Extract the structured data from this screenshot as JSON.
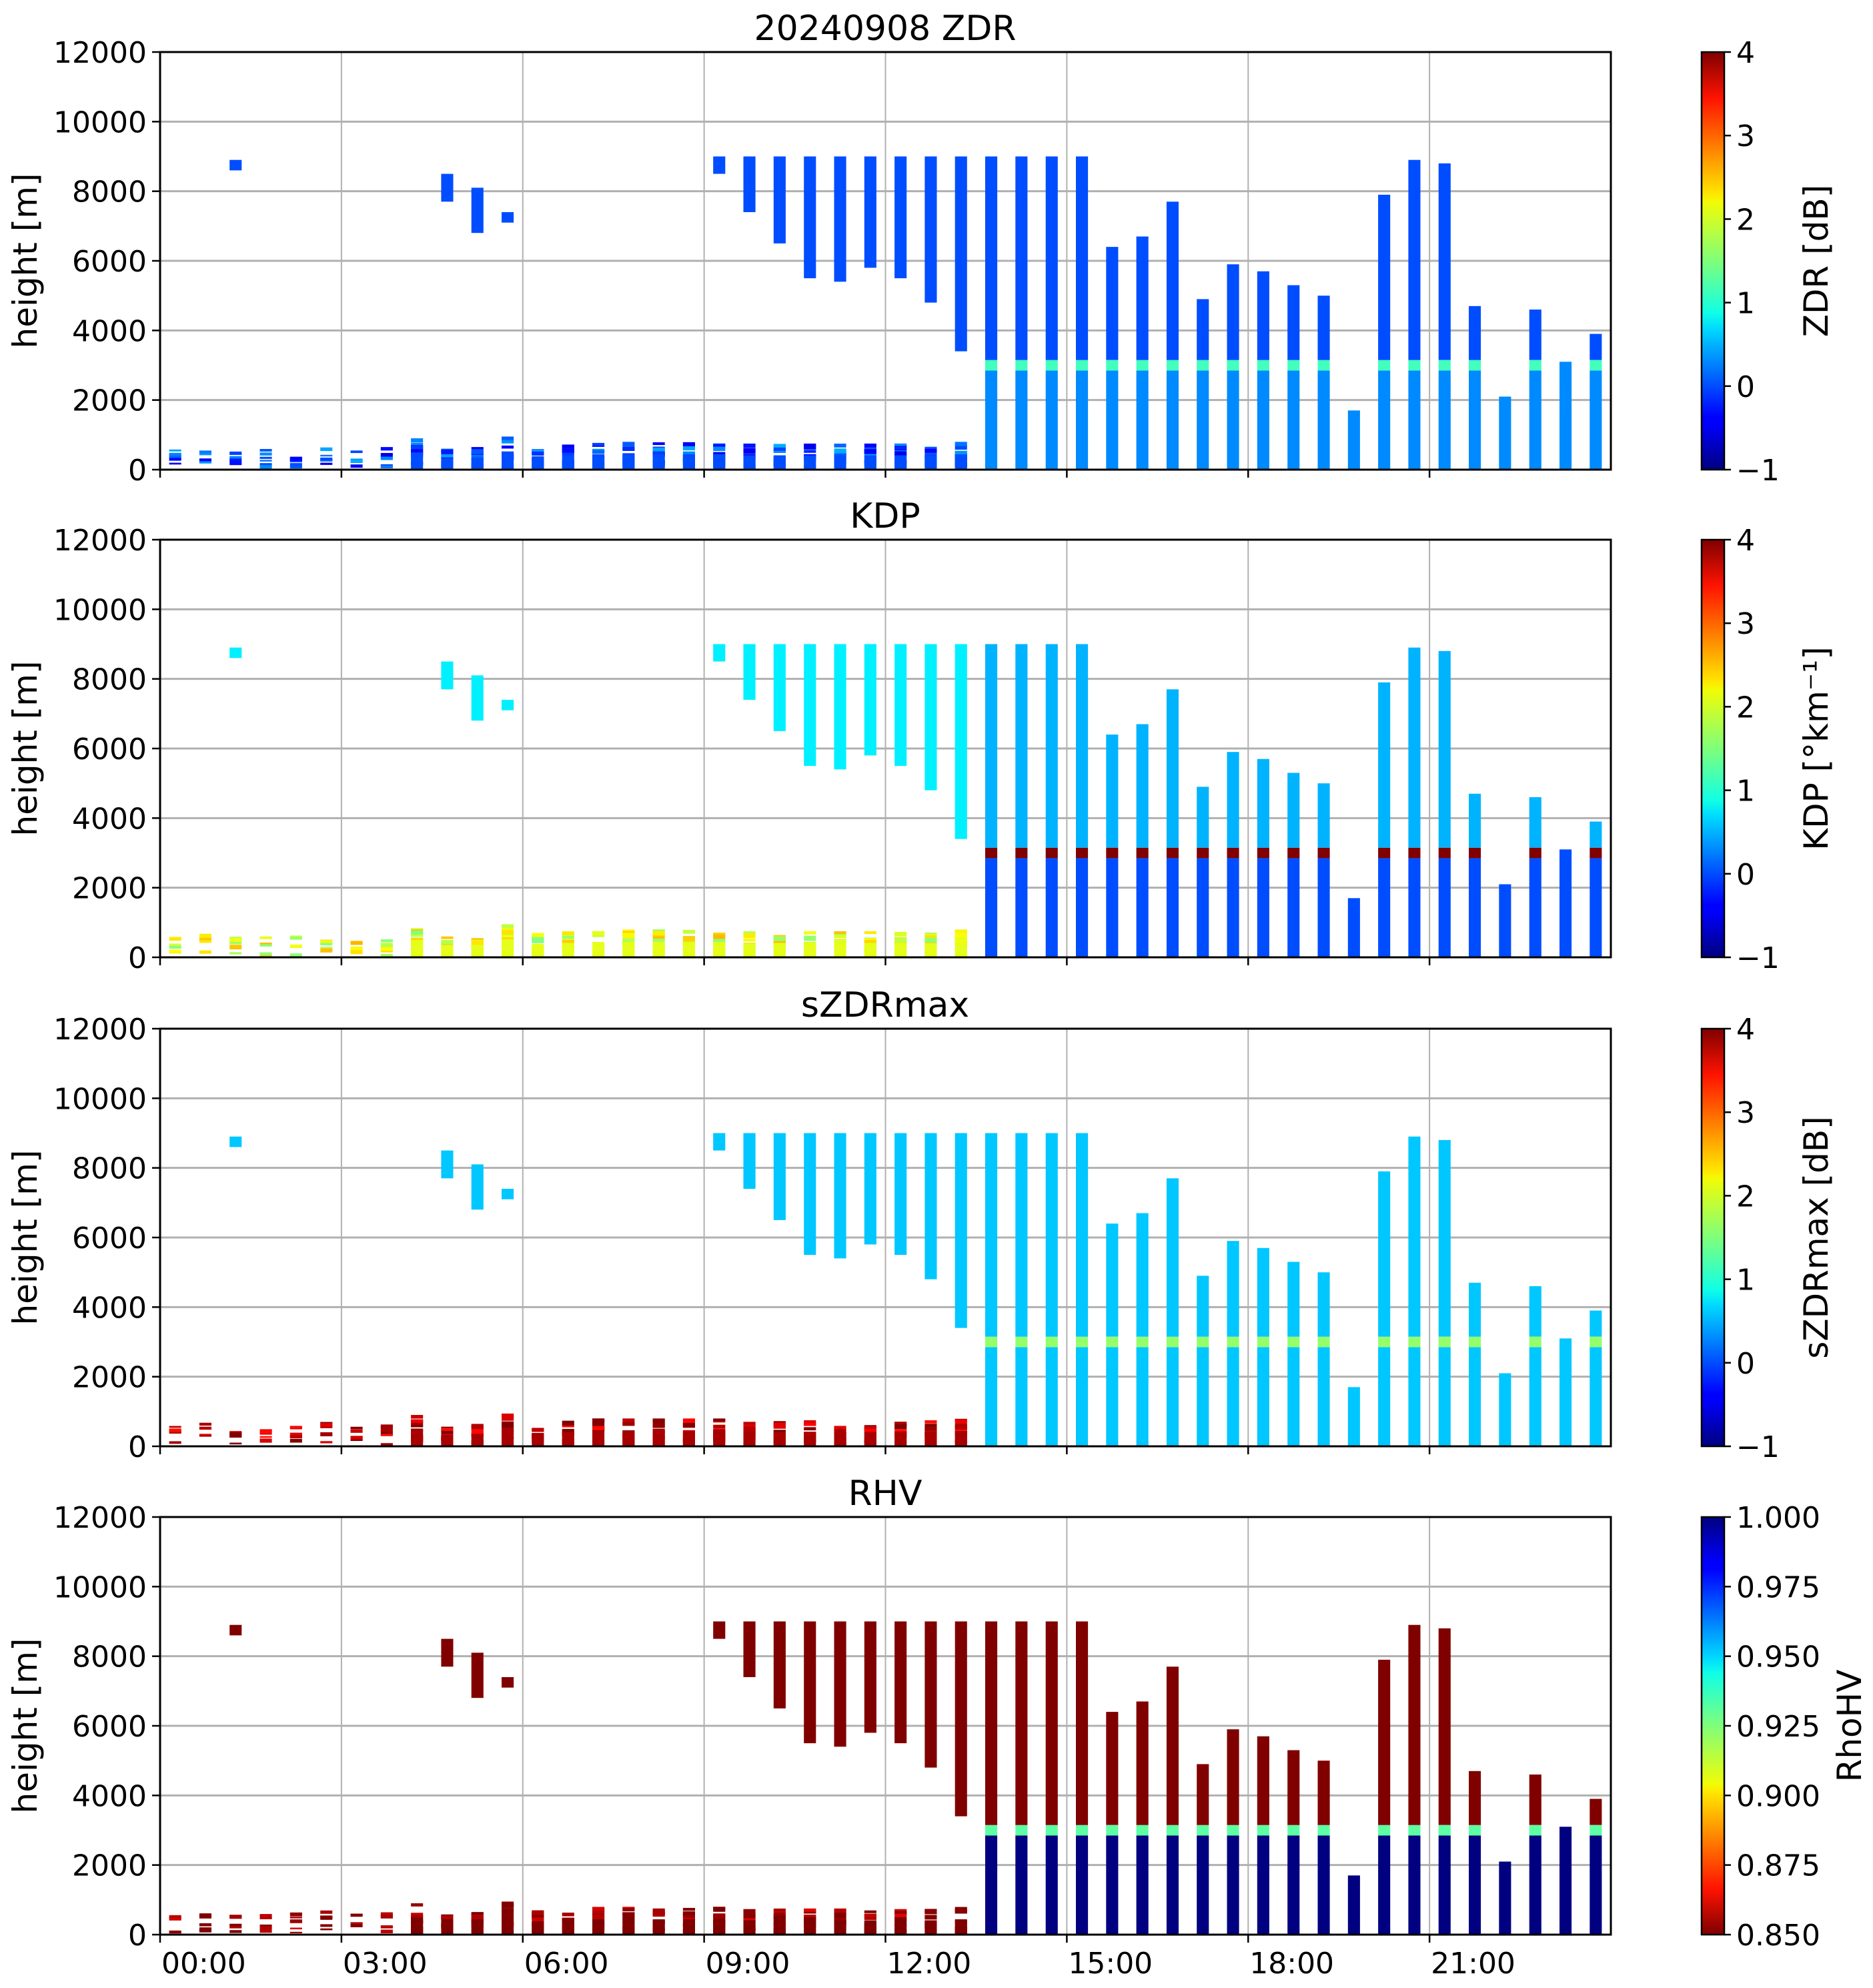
{
  "figure": {
    "panels": [
      {
        "id": "zdr",
        "title": "20240908 ZDR",
        "ylabel": "height [m]",
        "cbar_label": "ZDR [dB]",
        "cmap": "jet",
        "vmin": -1,
        "vmax": 4,
        "cbar_ticks": [
          "4",
          "3",
          "2",
          "1",
          "0",
          "−1"
        ],
        "cbar_tick_values": [
          4,
          3,
          2,
          1,
          0,
          -1
        ]
      },
      {
        "id": "kdp",
        "title": "KDP",
        "ylabel": "height [m]",
        "cbar_label": "KDP [°km⁻¹]",
        "cmap": "jet",
        "vmin": -1,
        "vmax": 4,
        "cbar_ticks": [
          "4",
          "3",
          "2",
          "1",
          "0",
          "−1"
        ],
        "cbar_tick_values": [
          4,
          3,
          2,
          1,
          0,
          -1
        ]
      },
      {
        "id": "szdrmax",
        "title": "sZDRmax",
        "ylabel": "height [m]",
        "cbar_label": "sZDRmax [dB]",
        "cmap": "jet",
        "vmin": -1,
        "vmax": 4,
        "cbar_ticks": [
          "4",
          "3",
          "2",
          "1",
          "0",
          "−1"
        ],
        "cbar_tick_values": [
          4,
          3,
          2,
          1,
          0,
          -1
        ]
      },
      {
        "id": "rhv",
        "title": "RHV",
        "ylabel": "height [m]",
        "cbar_label": "RhoHV",
        "cmap": "jet_r",
        "vmin": 0.85,
        "vmax": 1.0,
        "cbar_ticks": [
          "1.000",
          "0.975",
          "0.950",
          "0.925",
          "0.900",
          "0.875",
          "0.850"
        ],
        "cbar_tick_values": [
          1.0,
          0.975,
          0.95,
          0.925,
          0.9,
          0.875,
          0.85
        ]
      }
    ],
    "y_ticks": [
      "12000",
      "10000",
      "8000",
      "6000",
      "4000",
      "2000",
      "0"
    ],
    "y_tick_values": [
      12000,
      10000,
      8000,
      6000,
      4000,
      2000,
      0
    ],
    "x_ticks": [
      "00:00",
      "03:00",
      "06:00",
      "09:00",
      "12:00",
      "15:00",
      "18:00",
      "21:00"
    ],
    "x_tick_values": [
      0,
      3,
      6,
      9,
      12,
      15,
      18,
      21
    ]
  },
  "chart_data": {
    "type": "heatmap",
    "title": "20240908 ZDR",
    "subplots": [
      "ZDR",
      "KDP",
      "sZDRmax",
      "RHV"
    ],
    "xlabel": "",
    "ylabel": "height [m]",
    "xlim_hours": [
      0,
      24
    ],
    "ylim": [
      0,
      12000
    ],
    "grid": true,
    "scan_width_hours": 0.2,
    "melting_layer_height_m": 3000,
    "scans": [
      {
        "t": 0.25,
        "low_top": 600,
        "sparse": true
      },
      {
        "t": 0.75,
        "low_top": 700,
        "sparse": true
      },
      {
        "t": 1.25,
        "low_top": 650,
        "sparse": true,
        "upper": [
          8600,
          8900
        ]
      },
      {
        "t": 1.75,
        "low_top": 600,
        "sparse": true
      },
      {
        "t": 2.25,
        "low_top": 650,
        "sparse": true
      },
      {
        "t": 2.75,
        "low_top": 700,
        "sparse": true
      },
      {
        "t": 3.25,
        "low_top": 600,
        "sparse": true
      },
      {
        "t": 3.75,
        "low_top": 650,
        "sparse": true
      },
      {
        "t": 4.25,
        "low_top": 900
      },
      {
        "t": 4.75,
        "low_top": 600,
        "upper": [
          7700,
          8500
        ]
      },
      {
        "t": 5.25,
        "low_top": 650,
        "upper": [
          6800,
          8100
        ]
      },
      {
        "t": 5.75,
        "low_top": 950,
        "upper": [
          7100,
          7400
        ]
      },
      {
        "t": 6.25,
        "low_top": 700
      },
      {
        "t": 6.75,
        "low_top": 750
      },
      {
        "t": 7.25,
        "low_top": 800
      },
      {
        "t": 7.75,
        "low_top": 800
      },
      {
        "t": 8.25,
        "low_top": 800
      },
      {
        "t": 8.75,
        "low_top": 800
      },
      {
        "t": 9.25,
        "low_top": 800,
        "upper": [
          8500,
          9000
        ]
      },
      {
        "t": 9.75,
        "low_top": 750,
        "upper": [
          7400,
          9000
        ]
      },
      {
        "t": 10.25,
        "low_top": 750,
        "upper": [
          6500,
          9000
        ]
      },
      {
        "t": 10.75,
        "low_top": 750,
        "upper": [
          5500,
          9000
        ]
      },
      {
        "t": 11.25,
        "low_top": 750,
        "upper": [
          5400,
          9000
        ]
      },
      {
        "t": 11.75,
        "low_top": 750,
        "upper": [
          5800,
          9000
        ]
      },
      {
        "t": 12.25,
        "low_top": 750,
        "upper": [
          5500,
          9000
        ]
      },
      {
        "t": 12.75,
        "low_top": 750,
        "upper": [
          4800,
          9000
        ]
      },
      {
        "t": 13.25,
        "low_top": 800,
        "upper": [
          3400,
          9000
        ]
      },
      {
        "t": 13.75,
        "top": 9000
      },
      {
        "t": 14.25,
        "top": 9000
      },
      {
        "t": 14.75,
        "top": 9000
      },
      {
        "t": 15.25,
        "top": 9000
      },
      {
        "t": 15.75,
        "top": 6400
      },
      {
        "t": 16.25,
        "top": 6700
      },
      {
        "t": 16.75,
        "top": 7700
      },
      {
        "t": 17.25,
        "top": 4900
      },
      {
        "t": 17.75,
        "top": 5900
      },
      {
        "t": 18.25,
        "top": 5700
      },
      {
        "t": 18.75,
        "top": 5300
      },
      {
        "t": 19.25,
        "top": 5000
      },
      {
        "t": 19.75,
        "top": 1700
      },
      {
        "t": 20.25,
        "top": 7900
      },
      {
        "t": 20.75,
        "top": 8900
      },
      {
        "t": 21.25,
        "top": 8800
      },
      {
        "t": 21.75,
        "top": 4700
      },
      {
        "t": 22.25,
        "top": 2100
      },
      {
        "t": 22.75,
        "top": 4600
      },
      {
        "t": 23.25,
        "top": 3100
      },
      {
        "t": 23.75,
        "top": 3900
      }
    ],
    "typical_values": {
      "ZDR": {
        "rain": 0.3,
        "melting_layer": 1.2,
        "ice": 0.0
      },
      "KDP": {
        "rain": 0.0,
        "melting_layer": 4.0,
        "ice": 0.5
      },
      "sZDRmax": {
        "rain": 0.6,
        "melting_layer": 1.6,
        "ice": 0.6
      },
      "RHV": {
        "rain": 1.0,
        "melting_layer": 0.93,
        "ice": 0.85
      }
    }
  }
}
